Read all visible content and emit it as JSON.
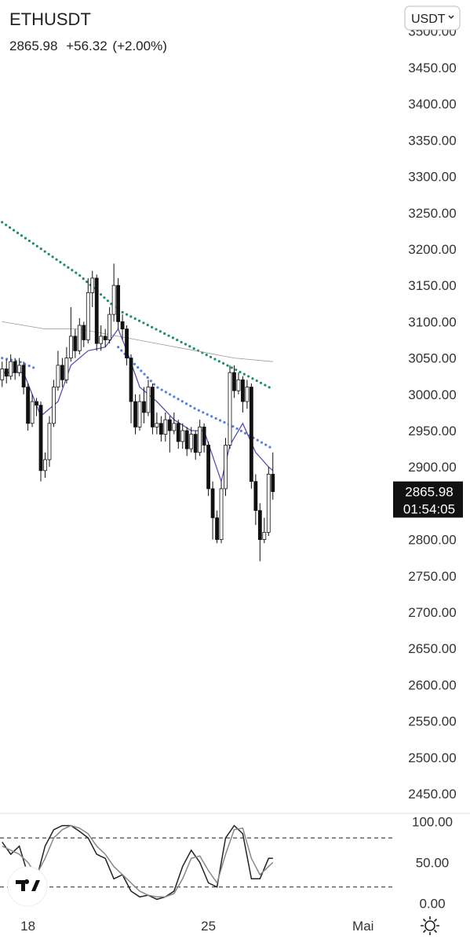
{
  "header": {
    "symbol": "ETHUSDT",
    "price": 2865.98,
    "change": "+56.32",
    "change_pct": "(+2.00%)",
    "currency": "USDT",
    "countdown": "01:54:05"
  },
  "chart_data": [
    {
      "type": "candlestick",
      "ylim": [
        2423,
        3543
      ],
      "xlim": [
        -0.5,
        90.8
      ],
      "yticks": [
        {
          "value": 2450,
          "label": "2450.00"
        },
        {
          "value": 2500,
          "label": "2500.00"
        },
        {
          "value": 2550,
          "label": "2550.00"
        },
        {
          "value": 2600,
          "label": "2600.00"
        },
        {
          "value": 2650,
          "label": "2650.00"
        },
        {
          "value": 2700,
          "label": "2700.00"
        },
        {
          "value": 2750,
          "label": "2750.00"
        },
        {
          "value": 2800,
          "label": "2800.00"
        },
        {
          "value": 2850,
          "label": "2850.00"
        },
        {
          "value": 2900,
          "label": "2900.00"
        },
        {
          "value": 2950,
          "label": "2950.00"
        },
        {
          "value": 3000,
          "label": "3000.00"
        },
        {
          "value": 3050,
          "label": "3050.00"
        },
        {
          "value": 3100,
          "label": "3100.00"
        },
        {
          "value": 3150,
          "label": "3150.00"
        },
        {
          "value": 3200,
          "label": "3200.00"
        },
        {
          "value": 3250,
          "label": "3250.00"
        },
        {
          "value": 3300,
          "label": "3300.00"
        },
        {
          "value": 3350,
          "label": "3350.00"
        },
        {
          "value": 3400,
          "label": "3400.00"
        },
        {
          "value": 3450,
          "label": "3450.00"
        },
        {
          "value": 3500,
          "label": "3500.00"
        }
      ],
      "open": [
        3020,
        3035,
        3025,
        3045,
        3030,
        3040,
        3010,
        2960,
        2990,
        2985,
        2895,
        2910,
        2960,
        3010,
        3040,
        3020,
        3050,
        3080,
        3060,
        3095,
        3075,
        3140,
        3160,
        3070,
        3080,
        3075,
        3110,
        3150,
        3100,
        3090,
        3050,
        2990,
        2955,
        2990,
        2975,
        3010,
        2955,
        2960,
        2945,
        2965,
        2950,
        2960,
        2935,
        2950,
        2925,
        2945,
        2920,
        2955,
        2930,
        2870,
        2830,
        2800,
        2870,
        2930,
        3030,
        3005,
        3020,
        2990,
        3010,
        2880,
        2840,
        2800,
        2810,
        2890
      ],
      "high": [
        3045,
        3048,
        3055,
        3050,
        3050,
        3045,
        3015,
        3000,
        2995,
        2990,
        2920,
        2970,
        3020,
        3060,
        3050,
        3065,
        3120,
        3090,
        3105,
        3100,
        3160,
        3170,
        3165,
        3095,
        3090,
        3120,
        3180,
        3160,
        3110,
        3095,
        3055,
        3000,
        3000,
        3010,
        3020,
        3015,
        2975,
        2970,
        2975,
        2970,
        2975,
        2965,
        2960,
        2955,
        2955,
        2950,
        2965,
        2960,
        2935,
        2880,
        2840,
        2880,
        2940,
        3040,
        3040,
        3030,
        3025,
        3020,
        3015,
        2890,
        2850,
        2830,
        2900,
        2920
      ],
      "low": [
        3010,
        3015,
        3020,
        3020,
        3025,
        3000,
        2950,
        2955,
        2970,
        2880,
        2885,
        2900,
        2955,
        3005,
        3010,
        3015,
        3045,
        3050,
        3055,
        3065,
        3070,
        3120,
        3060,
        3060,
        3065,
        3070,
        3100,
        3090,
        3075,
        3040,
        2960,
        2945,
        2950,
        2960,
        2970,
        2945,
        2945,
        2935,
        2935,
        2920,
        2945,
        2925,
        2925,
        2915,
        2920,
        2910,
        2915,
        2920,
        2860,
        2800,
        2795,
        2795,
        2860,
        2925,
        2995,
        3000,
        2975,
        2980,
        2870,
        2820,
        2770,
        2795,
        2805,
        2855
      ],
      "close": [
        3035,
        3025,
        3045,
        3030,
        3040,
        3010,
        2960,
        2990,
        2985,
        2895,
        2910,
        2960,
        3010,
        3040,
        3020,
        3050,
        3080,
        3060,
        3095,
        3075,
        3140,
        3160,
        3070,
        3080,
        3075,
        3110,
        3150,
        3100,
        3090,
        3050,
        2990,
        2955,
        2990,
        2975,
        3010,
        2955,
        2960,
        2945,
        2965,
        2950,
        2960,
        2935,
        2950,
        2925,
        2945,
        2920,
        2955,
        2930,
        2870,
        2830,
        2800,
        2870,
        2930,
        3030,
        3005,
        3020,
        2990,
        3010,
        2880,
        2840,
        2800,
        2810,
        2890,
        2865.98
      ],
      "series": [
        {
          "style": "dots",
          "color": "#1a8f6f",
          "x": [
            0,
            18,
            27,
            36,
            45,
            54,
            63
          ],
          "values": [
            3237,
            3164,
            3116,
            3089,
            3062,
            3035,
            3007
          ]
        },
        {
          "style": "dots",
          "color": "#5b7fe0",
          "x": [
            0,
            4,
            8,
            9,
            27,
            36,
            45,
            54,
            63
          ],
          "values": [
            3050,
            3045,
            3035,
            null,
            3065,
            3010,
            2980,
            2955,
            2925
          ]
        },
        {
          "style": "line",
          "color": "#999999",
          "x": [
            0,
            10,
            18,
            27,
            36,
            45,
            54,
            63
          ],
          "values": [
            3100,
            3090,
            3090,
            3080,
            3070,
            3060,
            3050,
            3045
          ]
        },
        {
          "style": "line",
          "color": "#5a4fb0",
          "x": [
            0,
            5,
            9,
            13,
            16,
            20,
            24,
            27,
            29,
            32,
            36,
            40,
            44,
            47,
            51,
            53,
            56,
            59,
            62,
            63
          ],
          "values": [
            3030,
            3030,
            2970,
            2990,
            3040,
            3060,
            3065,
            3090,
            3060,
            3010,
            2990,
            2965,
            2950,
            2950,
            2880,
            2930,
            2960,
            2920,
            2900,
            2895
          ]
        }
      ],
      "xticks": [
        {
          "value": 6,
          "label": "18"
        },
        {
          "value": 48,
          "label": "25"
        },
        {
          "value": 84,
          "label": "Mai"
        }
      ]
    },
    {
      "type": "line",
      "ylim": [
        -10,
        110
      ],
      "xlim": [
        -0.5,
        90.8
      ],
      "yticks": [
        {
          "value": 0,
          "label": "0.00"
        },
        {
          "value": 50,
          "label": "50.00"
        },
        {
          "value": 100,
          "label": "100.00"
        }
      ],
      "levels": [
        80,
        20
      ],
      "x": [
        0,
        2,
        4,
        6,
        8,
        10,
        12,
        14,
        16,
        18,
        20,
        22,
        24,
        26,
        28,
        30,
        32,
        34,
        36,
        38,
        40,
        42,
        44,
        46,
        48,
        50,
        52,
        54,
        56,
        58,
        60,
        62,
        63
      ],
      "series": [
        {
          "color": "#222222",
          "values": [
            75,
            60,
            70,
            35,
            30,
            70,
            90,
            95,
            95,
            88,
            80,
            60,
            55,
            30,
            35,
            15,
            8,
            10,
            5,
            8,
            15,
            45,
            65,
            50,
            25,
            20,
            80,
            95,
            85,
            30,
            30,
            55,
            55
          ]
        },
        {
          "color": "#888888",
          "values": [
            70,
            65,
            60,
            50,
            35,
            55,
            80,
            90,
            95,
            92,
            85,
            70,
            60,
            45,
            35,
            25,
            15,
            10,
            8,
            8,
            12,
            30,
            55,
            58,
            40,
            25,
            60,
            90,
            92,
            55,
            35,
            45,
            50
          ]
        }
      ]
    }
  ]
}
